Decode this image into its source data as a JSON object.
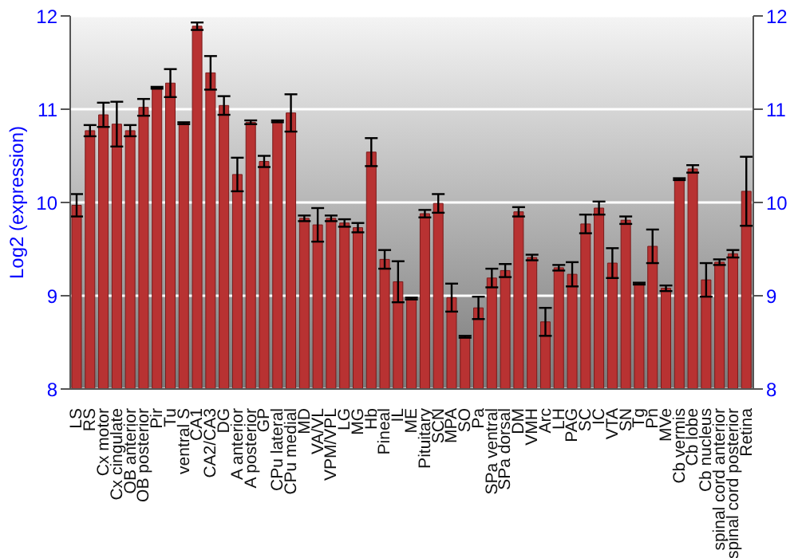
{
  "chart_data": {
    "type": "bar",
    "ylabel": "Log2 (expression)",
    "categories": [
      "LS",
      "RS",
      "Cx motor",
      "Cx cingulate",
      "OB anterior",
      "OB posterior",
      "Pir",
      "Tu",
      "ventral S",
      "CA1",
      "CA2/CA3",
      "DG",
      "A anterior",
      "A posterior",
      "GP",
      "CPu lateral",
      "CPu medial",
      "MD",
      "VA/VL",
      "VPM/VPL",
      "LG",
      "MG",
      "Hb",
      "Pineal",
      "IL",
      "ME",
      "Pituitary",
      "SCN",
      "MPA",
      "SO",
      "Pa",
      "SPa ventral",
      "SPa dorsal",
      "DM",
      "VMH",
      "Arc",
      "LH",
      "PAG",
      "SC",
      "IC",
      "VTA",
      "SN",
      "Tg",
      "Pn",
      "MVe",
      "Cb vermis",
      "Cb lobe",
      "Cb nucleus",
      "spinal cord anterior",
      "spinal cord posterior",
      "Retina"
    ],
    "values": [
      9.97,
      10.77,
      10.94,
      10.84,
      10.77,
      11.02,
      11.23,
      11.28,
      10.85,
      11.89,
      11.39,
      11.04,
      10.3,
      10.86,
      10.44,
      10.87,
      10.96,
      9.83,
      9.76,
      9.83,
      9.78,
      9.73,
      10.54,
      9.39,
      9.15,
      8.97,
      9.88,
      9.99,
      8.98,
      8.56,
      8.87,
      9.19,
      9.27,
      9.9,
      9.41,
      8.72,
      9.3,
      9.23,
      9.77,
      9.94,
      9.35,
      9.81,
      9.13,
      9.53,
      9.08,
      10.25,
      10.36,
      9.17,
      9.36,
      9.45,
      10.12
    ],
    "errors": [
      0.12,
      0.06,
      0.13,
      0.24,
      0.06,
      0.09,
      0.01,
      0.15,
      0.01,
      0.04,
      0.18,
      0.1,
      0.18,
      0.02,
      0.06,
      0.01,
      0.2,
      0.03,
      0.18,
      0.03,
      0.04,
      0.05,
      0.15,
      0.1,
      0.22,
      0.01,
      0.04,
      0.1,
      0.15,
      0.01,
      0.12,
      0.1,
      0.07,
      0.05,
      0.03,
      0.15,
      0.03,
      0.13,
      0.1,
      0.07,
      0.16,
      0.04,
      0.01,
      0.18,
      0.03,
      0.01,
      0.04,
      0.18,
      0.03,
      0.04,
      0.37
    ],
    "color": "#b83232",
    "ylim": [
      8,
      12
    ],
    "yticks": [
      8,
      9,
      10,
      11,
      12
    ],
    "y2lim": [
      8,
      12
    ],
    "y2ticks": [
      8,
      9,
      10,
      11,
      12
    ],
    "grid": "y"
  }
}
